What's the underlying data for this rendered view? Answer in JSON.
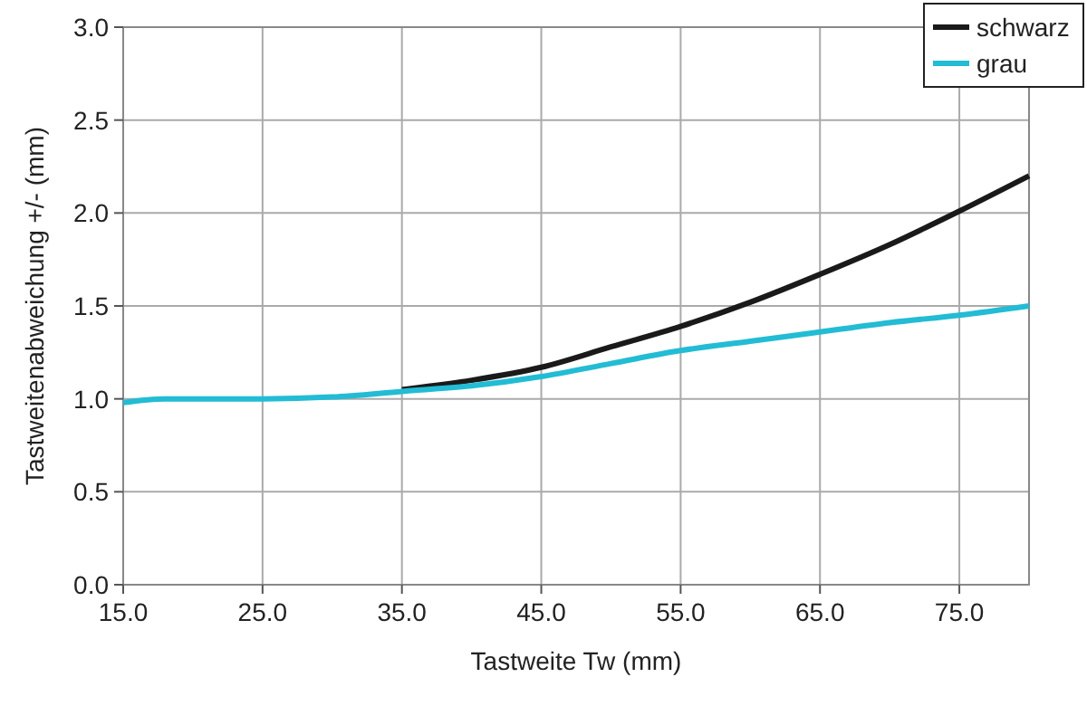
{
  "chart_data": {
    "type": "line",
    "xlabel": "Tastweite Tw (mm)",
    "ylabel": "Tastweitenabweichung +/- (mm)",
    "xlim": [
      15,
      80
    ],
    "ylim": [
      0,
      3
    ],
    "xticks": [
      {
        "value": 15,
        "label": "15.0"
      },
      {
        "value": 25,
        "label": "25.0"
      },
      {
        "value": 35,
        "label": "35.0"
      },
      {
        "value": 45,
        "label": "45.0"
      },
      {
        "value": 55,
        "label": "55.0"
      },
      {
        "value": 65,
        "label": "65.0"
      },
      {
        "value": 75,
        "label": "75.0"
      }
    ],
    "yticks": [
      {
        "value": 0,
        "label": "0.0"
      },
      {
        "value": 0.5,
        "label": "0.5"
      },
      {
        "value": 1,
        "label": "1.0"
      },
      {
        "value": 1.5,
        "label": "1.5"
      },
      {
        "value": 2,
        "label": "2.0"
      },
      {
        "value": 2.5,
        "label": "2.5"
      },
      {
        "value": 3,
        "label": "3.0"
      }
    ],
    "grid": true,
    "legend": "top right",
    "marker": "none",
    "line_style": "solid",
    "x": [
      15,
      18,
      25,
      30,
      35,
      40,
      45,
      50,
      55,
      60,
      65,
      70,
      75,
      80
    ],
    "series": [
      {
        "name": "schwarz",
        "color": "#1a1a1a",
        "values": [
          null,
          null,
          null,
          null,
          1.05,
          1.1,
          1.17,
          1.28,
          1.39,
          1.52,
          1.67,
          1.83,
          2.01,
          2.2
        ]
      },
      {
        "name": "grau",
        "color": "#22bcd4",
        "values": [
          0.98,
          1.0,
          1.0,
          1.01,
          1.04,
          1.07,
          1.12,
          1.19,
          1.26,
          1.31,
          1.36,
          1.41,
          1.45,
          1.5
        ]
      }
    ]
  }
}
